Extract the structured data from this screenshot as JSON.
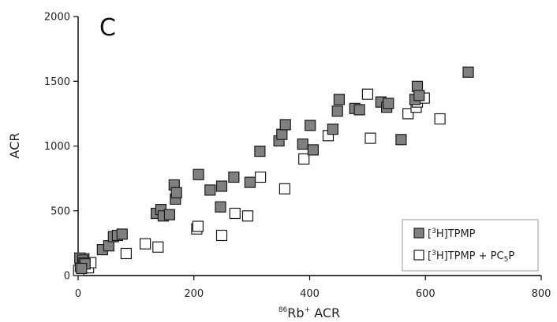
{
  "chart_data": {
    "type": "scatter",
    "panel_label": "C",
    "xlabel": {
      "sup": "86",
      "main": "Rb",
      "sup2": "+",
      "rest": " ACR"
    },
    "ylabel": "ACR",
    "xlim": [
      0,
      800
    ],
    "ylim": [
      0,
      2000
    ],
    "x_ticks": [
      0,
      200,
      400,
      600,
      800
    ],
    "y_ticks": [
      0,
      500,
      1000,
      1500,
      2000
    ],
    "x_tick_labels": [
      "0",
      "200",
      "400",
      "600",
      "800"
    ],
    "y_tick_labels": [
      "0",
      "500",
      "1000",
      "1500",
      "2000"
    ],
    "grid": false,
    "legend_position": "bottom-right",
    "legend": [
      {
        "pre": "[",
        "sup": "3",
        "post": "H]TPMP",
        "sub": "",
        "post2": ""
      },
      {
        "pre": "[",
        "sup": "3",
        "post": "H]TPMP + PC",
        "sub": "5",
        "post2": "P"
      }
    ],
    "colors": {
      "filled": "#808080",
      "open": "#ffffff",
      "stroke": "#1a1a1a"
    },
    "series": [
      {
        "marker": "filled-square",
        "points": [
          [
            3,
            135
          ],
          [
            8,
            120
          ],
          [
            10,
            100
          ],
          [
            12,
            90
          ],
          [
            6,
            55
          ],
          [
            42,
            200
          ],
          [
            53,
            230
          ],
          [
            61,
            300
          ],
          [
            68,
            310
          ],
          [
            76,
            320
          ],
          [
            135,
            480
          ],
          [
            143,
            510
          ],
          [
            147,
            460
          ],
          [
            158,
            470
          ],
          [
            166,
            700
          ],
          [
            168,
            590
          ],
          [
            170,
            640
          ],
          [
            208,
            780
          ],
          [
            228,
            660
          ],
          [
            246,
            530
          ],
          [
            248,
            690
          ],
          [
            269,
            760
          ],
          [
            297,
            720
          ],
          [
            314,
            960
          ],
          [
            347,
            1040
          ],
          [
            352,
            1090
          ],
          [
            358,
            1165
          ],
          [
            388,
            1015
          ],
          [
            401,
            1160
          ],
          [
            406,
            970
          ],
          [
            440,
            1130
          ],
          [
            448,
            1270
          ],
          [
            451,
            1360
          ],
          [
            478,
            1290
          ],
          [
            486,
            1280
          ],
          [
            523,
            1340
          ],
          [
            533,
            1300
          ],
          [
            536,
            1330
          ],
          [
            558,
            1050
          ],
          [
            582,
            1360
          ],
          [
            586,
            1460
          ],
          [
            589,
            1390
          ],
          [
            674,
            1570
          ]
        ]
      },
      {
        "marker": "open-square",
        "points": [
          [
            1,
            40
          ],
          [
            4,
            70
          ],
          [
            7,
            90
          ],
          [
            10,
            130
          ],
          [
            14,
            80
          ],
          [
            18,
            60
          ],
          [
            22,
            100
          ],
          [
            83,
            170
          ],
          [
            116,
            245
          ],
          [
            138,
            220
          ],
          [
            205,
            360
          ],
          [
            207,
            380
          ],
          [
            248,
            310
          ],
          [
            271,
            480
          ],
          [
            293,
            460
          ],
          [
            315,
            760
          ],
          [
            357,
            670
          ],
          [
            390,
            900
          ],
          [
            432,
            1080
          ],
          [
            500,
            1400
          ],
          [
            505,
            1060
          ],
          [
            570,
            1250
          ],
          [
            584,
            1300
          ],
          [
            586,
            1340
          ],
          [
            598,
            1370
          ],
          [
            625,
            1210
          ]
        ]
      }
    ]
  }
}
